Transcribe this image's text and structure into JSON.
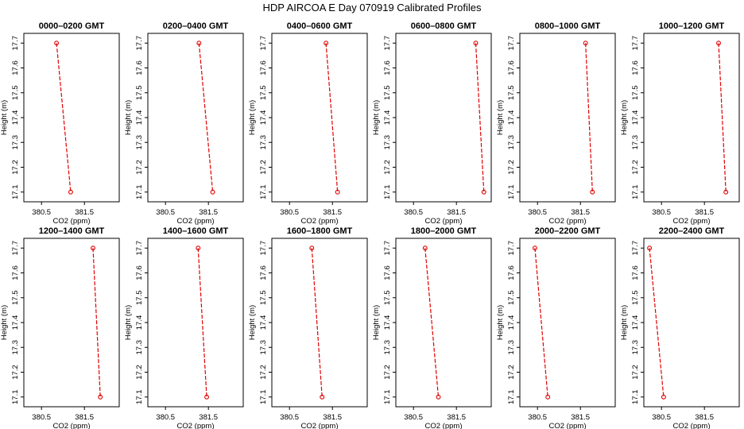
{
  "title": "HDP AIRCOA E  Day 070919  Calibrated Profiles",
  "colors": {
    "line": "#e00000",
    "marker": "#e00000",
    "axis": "#000000"
  },
  "chart_data": [
    {
      "type": "line",
      "title": "0000–0200 GMT",
      "xlabel": "CO2 (ppm)",
      "ylabel": "Height (m)",
      "xlim": [
        380.2,
        382.2
      ],
      "ylim": [
        17.08,
        17.72
      ],
      "xticks": [
        380.5,
        381.5
      ],
      "xtick_labels": [
        "380.5",
        "381.5"
      ],
      "yticks": [
        17.1,
        17.2,
        17.3,
        17.4,
        17.5,
        17.6,
        17.7
      ],
      "ytick_labels": [
        "17.1",
        "17.2",
        "17.3",
        "17.4",
        "17.5",
        "17.6",
        "17.7"
      ],
      "series": [
        {
          "x": [
            380.85,
            381.18
          ],
          "y": [
            17.7,
            17.1
          ]
        }
      ]
    },
    {
      "type": "line",
      "title": "0200–0400 GMT",
      "xlabel": "CO2 (ppm)",
      "ylabel": "Height (m)",
      "xlim": [
        380.2,
        382.2
      ],
      "ylim": [
        17.08,
        17.72
      ],
      "xticks": [
        380.5,
        381.5
      ],
      "xtick_labels": [
        "380.5",
        "381.5"
      ],
      "yticks": [
        17.1,
        17.2,
        17.3,
        17.4,
        17.5,
        17.6,
        17.7
      ],
      "ytick_labels": [
        "17.1",
        "17.2",
        "17.3",
        "17.4",
        "17.5",
        "17.6",
        "17.7"
      ],
      "series": [
        {
          "x": [
            381.28,
            381.6
          ],
          "y": [
            17.7,
            17.1
          ]
        }
      ]
    },
    {
      "type": "line",
      "title": "0400–0600 GMT",
      "xlabel": "CO2 (ppm)",
      "ylabel": "Height (m)",
      "xlim": [
        380.2,
        382.2
      ],
      "ylim": [
        17.08,
        17.72
      ],
      "xticks": [
        380.5,
        381.5
      ],
      "xtick_labels": [
        "380.5",
        "381.5"
      ],
      "yticks": [
        17.1,
        17.2,
        17.3,
        17.4,
        17.5,
        17.6,
        17.7
      ],
      "ytick_labels": [
        "17.1",
        "17.2",
        "17.3",
        "17.4",
        "17.5",
        "17.6",
        "17.7"
      ],
      "series": [
        {
          "x": [
            381.35,
            381.62
          ],
          "y": [
            17.7,
            17.1
          ]
        }
      ]
    },
    {
      "type": "line",
      "title": "0600–0800 GMT",
      "xlabel": "CO2 (ppm)",
      "ylabel": "Height (m)",
      "xlim": [
        380.2,
        382.2
      ],
      "ylim": [
        17.08,
        17.72
      ],
      "xticks": [
        380.5,
        381.5
      ],
      "xtick_labels": [
        "380.5",
        "381.5"
      ],
      "yticks": [
        17.1,
        17.2,
        17.3,
        17.4,
        17.5,
        17.6,
        17.7
      ],
      "ytick_labels": [
        "17.1",
        "17.2",
        "17.3",
        "17.4",
        "17.5",
        "17.6",
        "17.7"
      ],
      "series": [
        {
          "x": [
            381.95,
            382.14
          ],
          "y": [
            17.7,
            17.1
          ]
        }
      ]
    },
    {
      "type": "line",
      "title": "0800–1000 GMT",
      "xlabel": "CO2 (ppm)",
      "ylabel": "Height (m)",
      "xlim": [
        380.2,
        382.2
      ],
      "ylim": [
        17.08,
        17.72
      ],
      "xticks": [
        380.5,
        381.5
      ],
      "xtick_labels": [
        "380.5",
        "381.5"
      ],
      "yticks": [
        17.1,
        17.2,
        17.3,
        17.4,
        17.5,
        17.6,
        17.7
      ],
      "ytick_labels": [
        "17.1",
        "17.2",
        "17.3",
        "17.4",
        "17.5",
        "17.6",
        "17.7"
      ],
      "series": [
        {
          "x": [
            381.62,
            381.78
          ],
          "y": [
            17.7,
            17.1
          ]
        }
      ]
    },
    {
      "type": "line",
      "title": "1000–1200 GMT",
      "xlabel": "CO2 (ppm)",
      "ylabel": "Height (m)",
      "xlim": [
        380.2,
        382.2
      ],
      "ylim": [
        17.08,
        17.72
      ],
      "xticks": [
        380.5,
        381.5
      ],
      "xtick_labels": [
        "380.5",
        "381.5"
      ],
      "yticks": [
        17.1,
        17.2,
        17.3,
        17.4,
        17.5,
        17.6,
        17.7
      ],
      "ytick_labels": [
        "17.1",
        "17.2",
        "17.3",
        "17.4",
        "17.5",
        "17.6",
        "17.7"
      ],
      "series": [
        {
          "x": [
            381.83,
            382.0
          ],
          "y": [
            17.7,
            17.1
          ]
        }
      ]
    },
    {
      "type": "line",
      "title": "1200–1400 GMT",
      "xlabel": "CO2 (ppm)",
      "ylabel": "Height (m)",
      "xlim": [
        380.2,
        382.2
      ],
      "ylim": [
        17.08,
        17.72
      ],
      "xticks": [
        380.5,
        381.5
      ],
      "xtick_labels": [
        "380.5",
        "381.5"
      ],
      "yticks": [
        17.1,
        17.2,
        17.3,
        17.4,
        17.5,
        17.6,
        17.7
      ],
      "ytick_labels": [
        "17.1",
        "17.2",
        "17.3",
        "17.4",
        "17.5",
        "17.6",
        "17.7"
      ],
      "series": [
        {
          "x": [
            381.7,
            381.87
          ],
          "y": [
            17.7,
            17.1
          ]
        }
      ]
    },
    {
      "type": "line",
      "title": "1400–1600 GMT",
      "xlabel": "CO2 (ppm)",
      "ylabel": "Height (m)",
      "xlim": [
        380.2,
        382.2
      ],
      "ylim": [
        17.08,
        17.72
      ],
      "xticks": [
        380.5,
        381.5
      ],
      "xtick_labels": [
        "380.5",
        "381.5"
      ],
      "yticks": [
        17.1,
        17.2,
        17.3,
        17.4,
        17.5,
        17.6,
        17.7
      ],
      "ytick_labels": [
        "17.1",
        "17.2",
        "17.3",
        "17.4",
        "17.5",
        "17.6",
        "17.7"
      ],
      "series": [
        {
          "x": [
            381.26,
            381.46
          ],
          "y": [
            17.7,
            17.1
          ]
        }
      ]
    },
    {
      "type": "line",
      "title": "1600–1800 GMT",
      "xlabel": "CO2 (ppm)",
      "ylabel": "Height (m)",
      "xlim": [
        380.2,
        382.2
      ],
      "ylim": [
        17.08,
        17.72
      ],
      "xticks": [
        380.5,
        381.5
      ],
      "xtick_labels": [
        "380.5",
        "381.5"
      ],
      "yticks": [
        17.1,
        17.2,
        17.3,
        17.4,
        17.5,
        17.6,
        17.7
      ],
      "ytick_labels": [
        "17.1",
        "17.2",
        "17.3",
        "17.4",
        "17.5",
        "17.6",
        "17.7"
      ],
      "series": [
        {
          "x": [
            381.02,
            381.26
          ],
          "y": [
            17.7,
            17.1
          ]
        }
      ]
    },
    {
      "type": "line",
      "title": "1800–2000 GMT",
      "xlabel": "CO2 (ppm)",
      "ylabel": "Height (m)",
      "xlim": [
        380.2,
        382.2
      ],
      "ylim": [
        17.08,
        17.72
      ],
      "xticks": [
        380.5,
        381.5
      ],
      "xtick_labels": [
        "380.5",
        "381.5"
      ],
      "yticks": [
        17.1,
        17.2,
        17.3,
        17.4,
        17.5,
        17.6,
        17.7
      ],
      "ytick_labels": [
        "17.1",
        "17.2",
        "17.3",
        "17.4",
        "17.5",
        "17.6",
        "17.7"
      ],
      "series": [
        {
          "x": [
            380.77,
            381.08
          ],
          "y": [
            17.7,
            17.1
          ]
        }
      ]
    },
    {
      "type": "line",
      "title": "2000–2200 GMT",
      "xlabel": "CO2 (ppm)",
      "ylabel": "Height (m)",
      "xlim": [
        380.2,
        382.2
      ],
      "ylim": [
        17.08,
        17.72
      ],
      "xticks": [
        380.5,
        381.5
      ],
      "xtick_labels": [
        "380.5",
        "381.5"
      ],
      "yticks": [
        17.1,
        17.2,
        17.3,
        17.4,
        17.5,
        17.6,
        17.7
      ],
      "ytick_labels": [
        "17.1",
        "17.2",
        "17.3",
        "17.4",
        "17.5",
        "17.6",
        "17.7"
      ],
      "series": [
        {
          "x": [
            380.44,
            380.74
          ],
          "y": [
            17.7,
            17.1
          ]
        }
      ]
    },
    {
      "type": "line",
      "title": "2200–2400 GMT",
      "xlabel": "CO2 (ppm)",
      "ylabel": "Height (m)",
      "xlim": [
        380.2,
        382.2
      ],
      "ylim": [
        17.08,
        17.72
      ],
      "xticks": [
        380.5,
        381.5
      ],
      "xtick_labels": [
        "380.5",
        "381.5"
      ],
      "yticks": [
        17.1,
        17.2,
        17.3,
        17.4,
        17.5,
        17.6,
        17.7
      ],
      "ytick_labels": [
        "17.1",
        "17.2",
        "17.3",
        "17.4",
        "17.5",
        "17.6",
        "17.7"
      ],
      "series": [
        {
          "x": [
            380.22,
            380.55
          ],
          "y": [
            17.7,
            17.1
          ]
        }
      ]
    }
  ]
}
